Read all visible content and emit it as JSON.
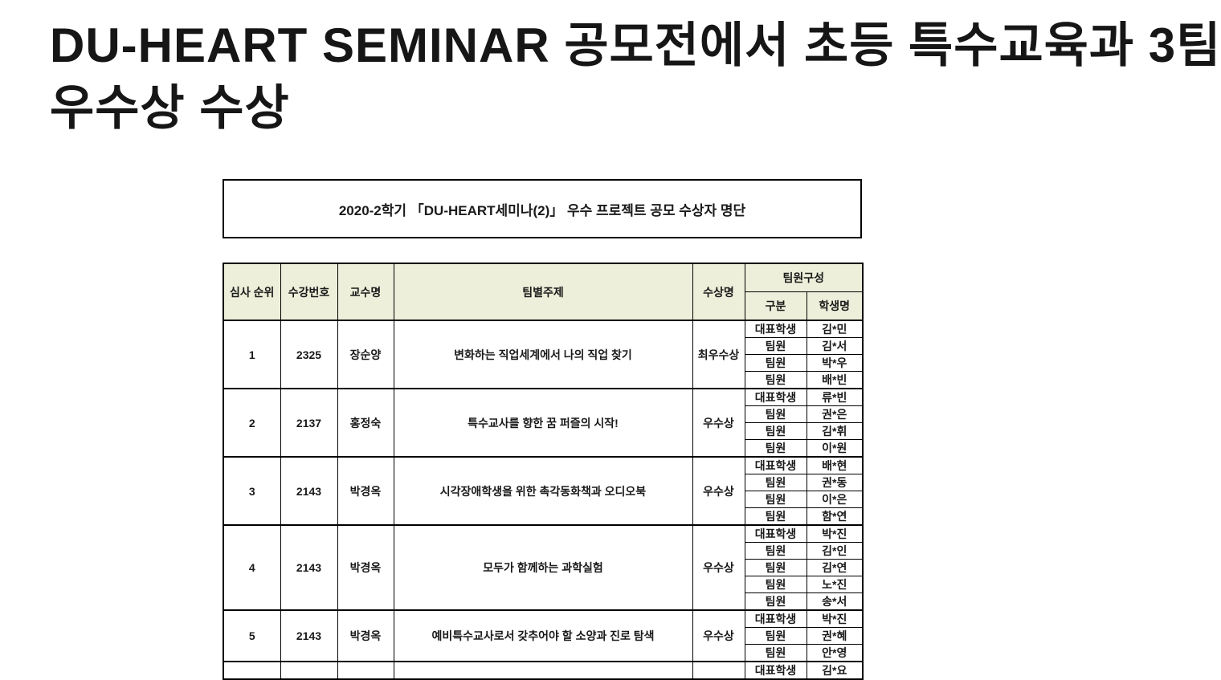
{
  "heading": {
    "line1": "DU-HEART SEMINAR 공모전에서 초등 특수교육과 3팀",
    "line2": "우수상 수상"
  },
  "table": {
    "caption": "2020-2학기 「DU-HEART세미나(2)」 우수 프로젝트 공모 수상자 명단",
    "headers": {
      "rank": "심사 순위",
      "course_no": "수강번호",
      "professor": "교수명",
      "topic": "팀별주제",
      "award": "수상명",
      "team": "팀원구성",
      "role": "구분",
      "student": "학생명"
    },
    "rows": [
      {
        "rank": "1",
        "course_no": "2325",
        "professor": "장순양",
        "topic": "변화하는 직업세계에서 나의 직업 찾기",
        "award": "최우수상",
        "members": [
          {
            "role": "대표학생",
            "name": "김*민"
          },
          {
            "role": "팀원",
            "name": "김*서"
          },
          {
            "role": "팀원",
            "name": "박*우"
          },
          {
            "role": "팀원",
            "name": "배*빈"
          }
        ]
      },
      {
        "rank": "2",
        "course_no": "2137",
        "professor": "홍정숙",
        "topic": "특수교사를 향한 꿈 퍼즐의 시작!",
        "award": "우수상",
        "members": [
          {
            "role": "대표학생",
            "name": "류*빈"
          },
          {
            "role": "팀원",
            "name": "권*은"
          },
          {
            "role": "팀원",
            "name": "김*휘"
          },
          {
            "role": "팀원",
            "name": "이*원"
          }
        ]
      },
      {
        "rank": "3",
        "course_no": "2143",
        "professor": "박경옥",
        "topic": "시각장애학생을 위한 촉각동화책과 오디오북",
        "award": "우수상",
        "members": [
          {
            "role": "대표학생",
            "name": "배*현"
          },
          {
            "role": "팀원",
            "name": "권*동"
          },
          {
            "role": "팀원",
            "name": "이*은"
          },
          {
            "role": "팀원",
            "name": "함*연"
          }
        ]
      },
      {
        "rank": "4",
        "course_no": "2143",
        "professor": "박경옥",
        "topic": "모두가 함께하는 과학실험",
        "award": "우수상",
        "members": [
          {
            "role": "대표학생",
            "name": "박*진"
          },
          {
            "role": "팀원",
            "name": "김*인"
          },
          {
            "role": "팀원",
            "name": "김*연"
          },
          {
            "role": "팀원",
            "name": "노*진"
          },
          {
            "role": "팀원",
            "name": "송*서"
          }
        ]
      },
      {
        "rank": "5",
        "course_no": "2143",
        "professor": "박경옥",
        "topic": "예비특수교사로서 갖추어야 할 소양과 진로 탐색",
        "award": "우수상",
        "members": [
          {
            "role": "대표학생",
            "name": "박*진"
          },
          {
            "role": "팀원",
            "name": "권*혜"
          },
          {
            "role": "팀원",
            "name": "안*영"
          }
        ]
      },
      {
        "rank": "",
        "course_no": "",
        "professor": "",
        "topic": "",
        "award": "",
        "partial": true,
        "members": [
          {
            "role": "대표학생",
            "name": "김*요"
          }
        ]
      }
    ]
  },
  "colors": {
    "page_bg": "#ffffff",
    "header_bg": "#edefda",
    "border": "#000000",
    "text": "#1a1a1a"
  }
}
